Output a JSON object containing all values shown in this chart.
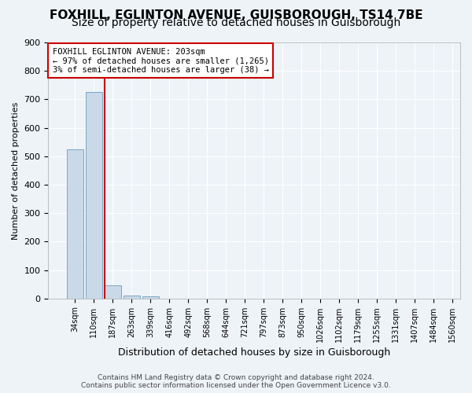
{
  "title1": "FOXHILL, EGLINTON AVENUE, GUISBOROUGH, TS14 7BE",
  "title2": "Size of property relative to detached houses in Guisborough",
  "xlabel": "Distribution of detached houses by size in Guisborough",
  "ylabel": "Number of detached properties",
  "bin_labels": [
    "34sqm",
    "110sqm",
    "187sqm",
    "263sqm",
    "339sqm",
    "416sqm",
    "492sqm",
    "568sqm",
    "644sqm",
    "721sqm",
    "797sqm",
    "873sqm",
    "950sqm",
    "1026sqm",
    "1102sqm",
    "1179sqm",
    "1255sqm",
    "1331sqm",
    "1407sqm",
    "1484sqm",
    "1560sqm"
  ],
  "bar_values": [
    525,
    725,
    47,
    10,
    7,
    0,
    0,
    0,
    0,
    0,
    0,
    0,
    0,
    0,
    0,
    0,
    0,
    0,
    0,
    0
  ],
  "bar_color": "#c9d9e8",
  "bar_edge_color": "#7ba7c7",
  "property_line_x": 2,
  "property_line_color": "#cc0000",
  "annotation_text": "FOXHILL EGLINTON AVENUE: 203sqm\n← 97% of detached houses are smaller (1,265)\n3% of semi-detached houses are larger (38) →",
  "annotation_box_color": "#ffffff",
  "annotation_box_edge": "#cc0000",
  "ylim": [
    0,
    900
  ],
  "yticks": [
    0,
    100,
    200,
    300,
    400,
    500,
    600,
    700,
    800,
    900
  ],
  "footer": "Contains HM Land Registry data © Crown copyright and database right 2024.\nContains public sector information licensed under the Open Government Licence v3.0.",
  "bg_color": "#eef3f8",
  "grid_color": "#ffffff",
  "title1_fontsize": 11,
  "title2_fontsize": 10
}
